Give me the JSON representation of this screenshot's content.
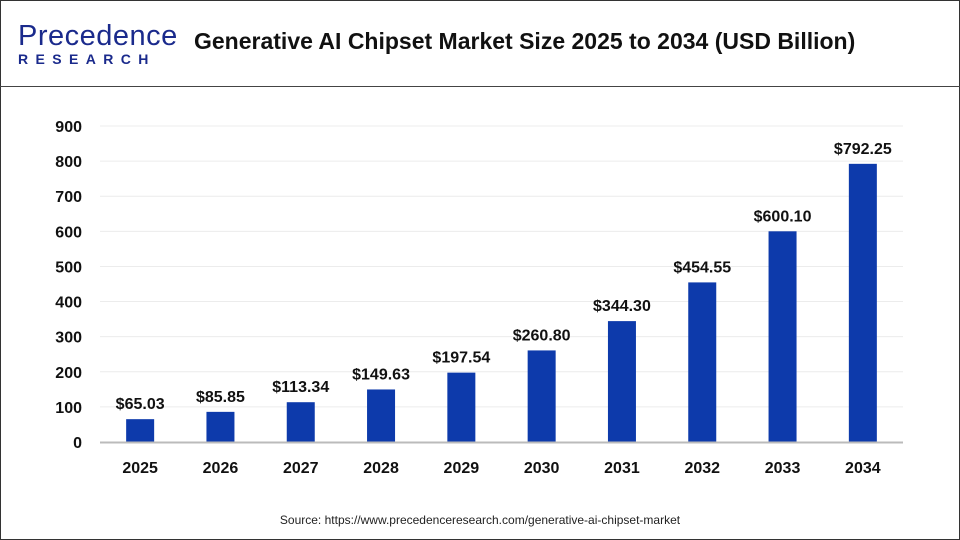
{
  "header": {
    "logo_line1": "Precedence",
    "logo_line2": "RESEARCH",
    "title": "Generative AI Chipset Market Size 2025 to 2034 (USD Billion)"
  },
  "chart_data": {
    "type": "bar",
    "title": "Generative AI Chipset Market Size 2025 to 2034 (USD Billion)",
    "categories": [
      "2025",
      "2026",
      "2027",
      "2028",
      "2029",
      "2030",
      "2031",
      "2032",
      "2033",
      "2034"
    ],
    "values": [
      65.03,
      85.85,
      113.34,
      149.63,
      197.54,
      260.8,
      344.3,
      454.55,
      600.1,
      792.25
    ],
    "data_labels": [
      "$65.03",
      "$85.85",
      "$113.34",
      "$149.63",
      "$197.54",
      "$260.80",
      "$344.30",
      "$454.55",
      "$600.10",
      "$792.25"
    ],
    "yticks": [
      0,
      100,
      200,
      300,
      400,
      500,
      600,
      700,
      800,
      900
    ],
    "ylim": [
      0,
      900
    ],
    "grid": true,
    "bar_color": "#0d3aab"
  },
  "footer": {
    "source": "Source: https://www.precedenceresearch.com/generative-ai-chipset-market"
  }
}
